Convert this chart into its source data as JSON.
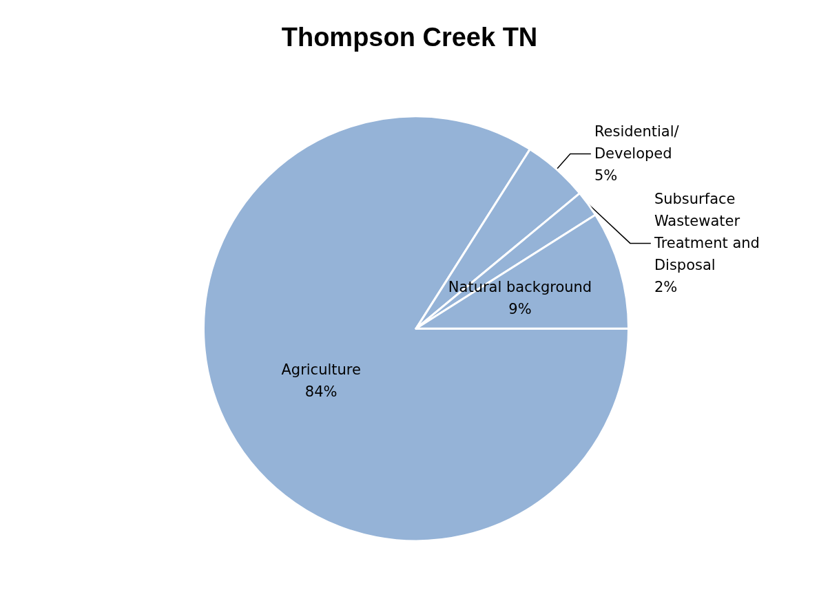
{
  "chart_data": {
    "type": "pie",
    "title": "Thompson Creek TN",
    "categories": [
      "Agriculture",
      "Residential/ Developed",
      "Subsurface Wastewater Treatment and Disposal",
      "Natural background"
    ],
    "values": [
      84,
      5,
      2,
      9
    ],
    "value_labels": [
      "84%",
      "5%",
      "2%",
      "9%"
    ],
    "colors": [
      "#95b3d7",
      "#95b3d7",
      "#95b3d7",
      "#95b3d7"
    ],
    "legend": false
  }
}
